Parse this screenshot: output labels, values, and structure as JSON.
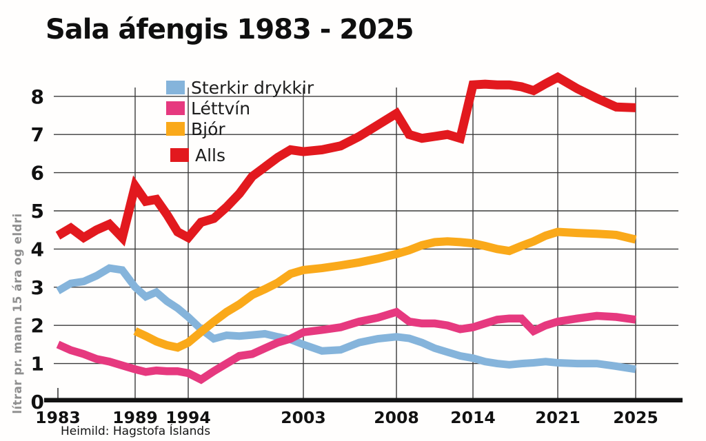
{
  "chart_data": {
    "type": "line",
    "title": "Sala áfengis 1983 - 2025",
    "ylabel": "lítrar pr. mann 15 ára og eldri",
    "source": "Heimild: Hagstofa Íslands",
    "x_tick_years": [
      1983,
      1989,
      1994,
      2003,
      2008,
      2014,
      2021,
      2025
    ],
    "x_anchors": {
      "1983": 84,
      "1989": 196,
      "1994": 273,
      "2003": 440,
      "2008": 575,
      "2014": 686,
      "2021": 809,
      "2025": 922
    },
    "y_ticks": [
      0,
      1,
      2,
      3,
      4,
      5,
      6,
      7,
      8
    ],
    "ylim": [
      0,
      8.6
    ],
    "grid": true,
    "legend_position": "top-left-inside",
    "series": [
      {
        "id": "sterkir",
        "label": "Sterkir drykkir",
        "color": "#85B4DB",
        "width": 11,
        "points": [
          [
            1983,
            2.9
          ],
          [
            1984,
            3.1
          ],
          [
            1985,
            3.15
          ],
          [
            1986,
            3.3
          ],
          [
            1987,
            3.5
          ],
          [
            1988,
            3.45
          ],
          [
            1989,
            3.0
          ],
          [
            1990,
            2.75
          ],
          [
            1991,
            2.87
          ],
          [
            1992,
            2.63
          ],
          [
            1993,
            2.45
          ],
          [
            1994,
            2.22
          ],
          [
            1995,
            1.9
          ],
          [
            1996,
            1.65
          ],
          [
            1997,
            1.74
          ],
          [
            1998,
            1.72
          ],
          [
            1999,
            1.75
          ],
          [
            2000,
            1.78
          ],
          [
            2001,
            1.7
          ],
          [
            2002,
            1.63
          ],
          [
            2003,
            1.5
          ],
          [
            2004,
            1.33
          ],
          [
            2005,
            1.36
          ],
          [
            2006,
            1.55
          ],
          [
            2007,
            1.65
          ],
          [
            2008,
            1.7
          ],
          [
            2009,
            1.66
          ],
          [
            2010,
            1.55
          ],
          [
            2011,
            1.4
          ],
          [
            2012,
            1.3
          ],
          [
            2013,
            1.2
          ],
          [
            2014,
            1.14
          ],
          [
            2015,
            1.05
          ],
          [
            2016,
            1.0
          ],
          [
            2017,
            0.97
          ],
          [
            2018,
            1.0
          ],
          [
            2019,
            1.02
          ],
          [
            2020,
            1.05
          ],
          [
            2021,
            1.02
          ],
          [
            2022,
            1.0
          ],
          [
            2023,
            1.0
          ],
          [
            2024,
            0.93
          ],
          [
            2025,
            0.85
          ]
        ]
      },
      {
        "id": "lettvin",
        "label": "Léttvín",
        "color": "#E6397F",
        "width": 11.5,
        "points": [
          [
            1983,
            1.5
          ],
          [
            1984,
            1.35
          ],
          [
            1985,
            1.25
          ],
          [
            1986,
            1.12
          ],
          [
            1987,
            1.05
          ],
          [
            1988,
            0.95
          ],
          [
            1989,
            0.85
          ],
          [
            1990,
            0.78
          ],
          [
            1991,
            0.82
          ],
          [
            1992,
            0.8
          ],
          [
            1993,
            0.8
          ],
          [
            1994,
            0.75
          ],
          [
            1995,
            0.58
          ],
          [
            1996,
            0.8
          ],
          [
            1997,
            1.0
          ],
          [
            1998,
            1.2
          ],
          [
            1999,
            1.25
          ],
          [
            2000,
            1.4
          ],
          [
            2001,
            1.55
          ],
          [
            2002,
            1.65
          ],
          [
            2003,
            1.82
          ],
          [
            2004,
            1.88
          ],
          [
            2005,
            1.95
          ],
          [
            2006,
            2.1
          ],
          [
            2007,
            2.2
          ],
          [
            2008,
            2.35
          ],
          [
            2009,
            2.1
          ],
          [
            2010,
            2.05
          ],
          [
            2011,
            2.05
          ],
          [
            2012,
            2.0
          ],
          [
            2013,
            1.9
          ],
          [
            2014,
            1.95
          ],
          [
            2015,
            2.05
          ],
          [
            2016,
            2.15
          ],
          [
            2017,
            2.18
          ],
          [
            2018,
            2.18
          ],
          [
            2019,
            1.85
          ],
          [
            2020,
            2.0
          ],
          [
            2021,
            2.1
          ],
          [
            2022,
            2.18
          ],
          [
            2023,
            2.25
          ],
          [
            2024,
            2.22
          ],
          [
            2025,
            2.15
          ]
        ]
      },
      {
        "id": "bjor",
        "label": "Bjór",
        "color": "#FAA91A",
        "width": 12,
        "points": [
          [
            1989,
            1.85
          ],
          [
            1990,
            1.72
          ],
          [
            1991,
            1.58
          ],
          [
            1992,
            1.48
          ],
          [
            1993,
            1.42
          ],
          [
            1994,
            1.55
          ],
          [
            1995,
            1.83
          ],
          [
            1996,
            2.1
          ],
          [
            1997,
            2.35
          ],
          [
            1998,
            2.55
          ],
          [
            1999,
            2.8
          ],
          [
            2000,
            2.95
          ],
          [
            2001,
            3.12
          ],
          [
            2002,
            3.35
          ],
          [
            2003,
            3.45
          ],
          [
            2004,
            3.5
          ],
          [
            2005,
            3.57
          ],
          [
            2006,
            3.65
          ],
          [
            2007,
            3.75
          ],
          [
            2008,
            3.87
          ],
          [
            2009,
            3.97
          ],
          [
            2010,
            4.1
          ],
          [
            2011,
            4.18
          ],
          [
            2012,
            4.2
          ],
          [
            2013,
            4.18
          ],
          [
            2014,
            4.15
          ],
          [
            2015,
            4.08
          ],
          [
            2016,
            4.0
          ],
          [
            2017,
            3.95
          ],
          [
            2018,
            4.08
          ],
          [
            2019,
            4.2
          ],
          [
            2020,
            4.35
          ],
          [
            2021,
            4.45
          ],
          [
            2022,
            4.42
          ],
          [
            2023,
            4.4
          ],
          [
            2024,
            4.37
          ],
          [
            2025,
            4.25
          ]
        ]
      },
      {
        "id": "alls",
        "label": "Alls",
        "color": "#E2191E",
        "width": 13,
        "points": [
          [
            1983,
            4.35
          ],
          [
            1984,
            4.55
          ],
          [
            1985,
            4.3
          ],
          [
            1986,
            4.5
          ],
          [
            1987,
            4.65
          ],
          [
            1988,
            4.3
          ],
          [
            1989,
            5.65
          ],
          [
            1990,
            5.25
          ],
          [
            1991,
            5.3
          ],
          [
            1992,
            4.9
          ],
          [
            1993,
            4.45
          ],
          [
            1994,
            4.3
          ],
          [
            1995,
            4.7
          ],
          [
            1996,
            4.8
          ],
          [
            1997,
            5.1
          ],
          [
            1998,
            5.45
          ],
          [
            1999,
            5.9
          ],
          [
            2000,
            6.15
          ],
          [
            2001,
            6.4
          ],
          [
            2002,
            6.6
          ],
          [
            2003,
            6.55
          ],
          [
            2004,
            6.6
          ],
          [
            2005,
            6.7
          ],
          [
            2006,
            6.95
          ],
          [
            2007,
            7.25
          ],
          [
            2008,
            7.55
          ],
          [
            2009,
            7.0
          ],
          [
            2010,
            6.9
          ],
          [
            2011,
            6.95
          ],
          [
            2012,
            7.0
          ],
          [
            2013,
            6.9
          ],
          [
            2014,
            8.3
          ],
          [
            2015,
            8.32
          ],
          [
            2016,
            8.3
          ],
          [
            2017,
            8.3
          ],
          [
            2018,
            8.25
          ],
          [
            2019,
            8.15
          ],
          [
            2020,
            8.33
          ],
          [
            2021,
            8.5
          ],
          [
            2022,
            8.2
          ],
          [
            2023,
            7.95
          ],
          [
            2024,
            7.72
          ],
          [
            2025,
            7.7
          ]
        ]
      }
    ]
  },
  "colors": {
    "grid": "#3a3a3a",
    "axis": "#121212",
    "tick_text": "#111111",
    "ylabel_text": "#8f8f8f"
  }
}
